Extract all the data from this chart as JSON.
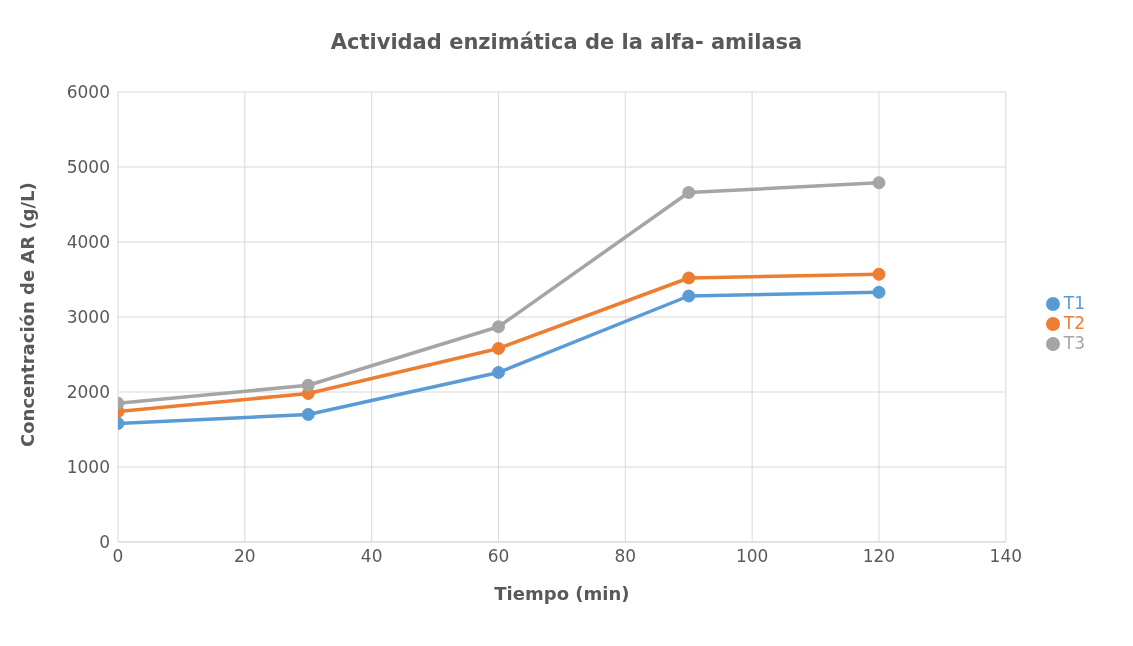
{
  "chart_data": {
    "type": "line",
    "title": "Actividad enzimática de la alfa- amilasa",
    "xlabel": "Tiempo (min)",
    "ylabel": "Concentración de AR (g/L)",
    "x": [
      0,
      30,
      60,
      90,
      120
    ],
    "series": [
      {
        "name": "T1",
        "color": "#5b9bd5",
        "values": [
          1580,
          1700,
          2260,
          3280,
          3330
        ]
      },
      {
        "name": "T2",
        "color": "#ed7d31",
        "values": [
          1740,
          1980,
          2580,
          3520,
          3570
        ]
      },
      {
        "name": "T3",
        "color": "#a5a5a5",
        "values": [
          1850,
          2090,
          2870,
          4660,
          4790
        ]
      }
    ],
    "xlim": [
      0,
      140
    ],
    "xticks": [
      0,
      20,
      40,
      60,
      80,
      100,
      120,
      140
    ],
    "ylim": [
      0,
      6000
    ],
    "yticks": [
      0,
      1000,
      2000,
      3000,
      4000,
      5000,
      6000
    ],
    "grid": true,
    "legend": "right",
    "marker": "circle",
    "line_style": "solid"
  }
}
